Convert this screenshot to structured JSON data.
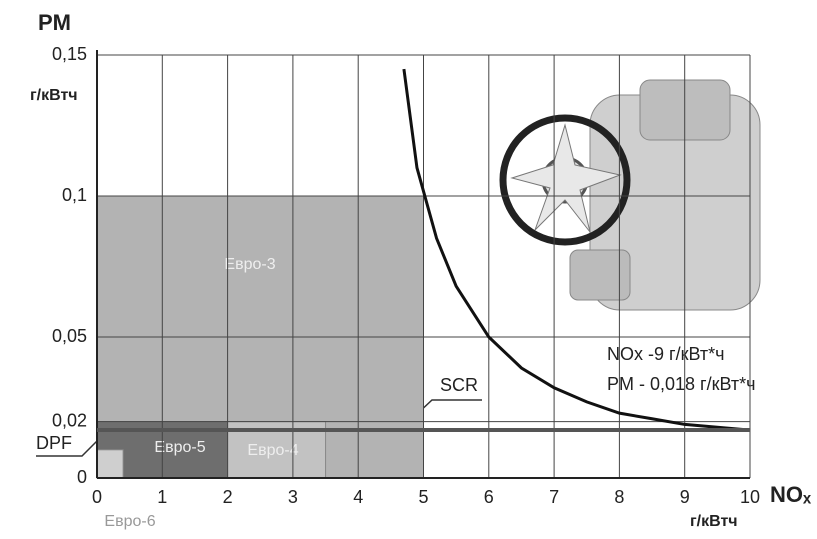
{
  "chart_data": {
    "type": "line",
    "y_label": "PM",
    "y_unit": "г/кВтч",
    "x_label": "NOₓ",
    "x_unit": "г/кВтч",
    "xlim": [
      0,
      10
    ],
    "xticks": [
      0,
      1,
      2,
      3,
      4,
      5,
      6,
      7,
      8,
      9,
      10
    ],
    "ylim": [
      0,
      0.15
    ],
    "yticks": [
      0,
      {
        "value": 0.02,
        "label": "0,02"
      },
      {
        "value": 0.05,
        "label": "0,05"
      },
      {
        "value": 0.1,
        "label": "0,1"
      },
      {
        "value": 0.15,
        "label": "0,15"
      }
    ],
    "grid": true,
    "regions": [
      {
        "name": "Евро-3",
        "nox": 5,
        "pm": 0.1,
        "color": "#b3b3b3"
      },
      {
        "name": "Евро-4",
        "nox": 3.5,
        "pm": 0.02,
        "color": "#c2c2c2"
      },
      {
        "name": "Евро-5",
        "nox": 2,
        "pm": 0.02,
        "color": "#6e6e6e"
      },
      {
        "name": "Евро-6",
        "nox": 0.4,
        "pm": 0.01,
        "color": "#cfcfcf"
      }
    ],
    "series": [
      {
        "color": "#111111",
        "x": [
          4.7,
          4.9,
          5.2,
          5.5,
          6,
          6.5,
          7,
          7.5,
          8,
          8.5,
          9,
          9.5,
          10
        ],
        "y": [
          0.145,
          0.11,
          0.085,
          0.068,
          0.05,
          0.039,
          0.032,
          0.027,
          0.023,
          0.021,
          0.019,
          0.018,
          0.017
        ]
      },
      {
        "color": "#555555",
        "x": [
          0,
          10
        ],
        "y": [
          0.017,
          0.017
        ]
      }
    ],
    "annotations": [
      "SCR",
      "DPF",
      "NOx -9 г/кВт*ч",
      "PM - 0,018 г/кВт*ч"
    ]
  }
}
